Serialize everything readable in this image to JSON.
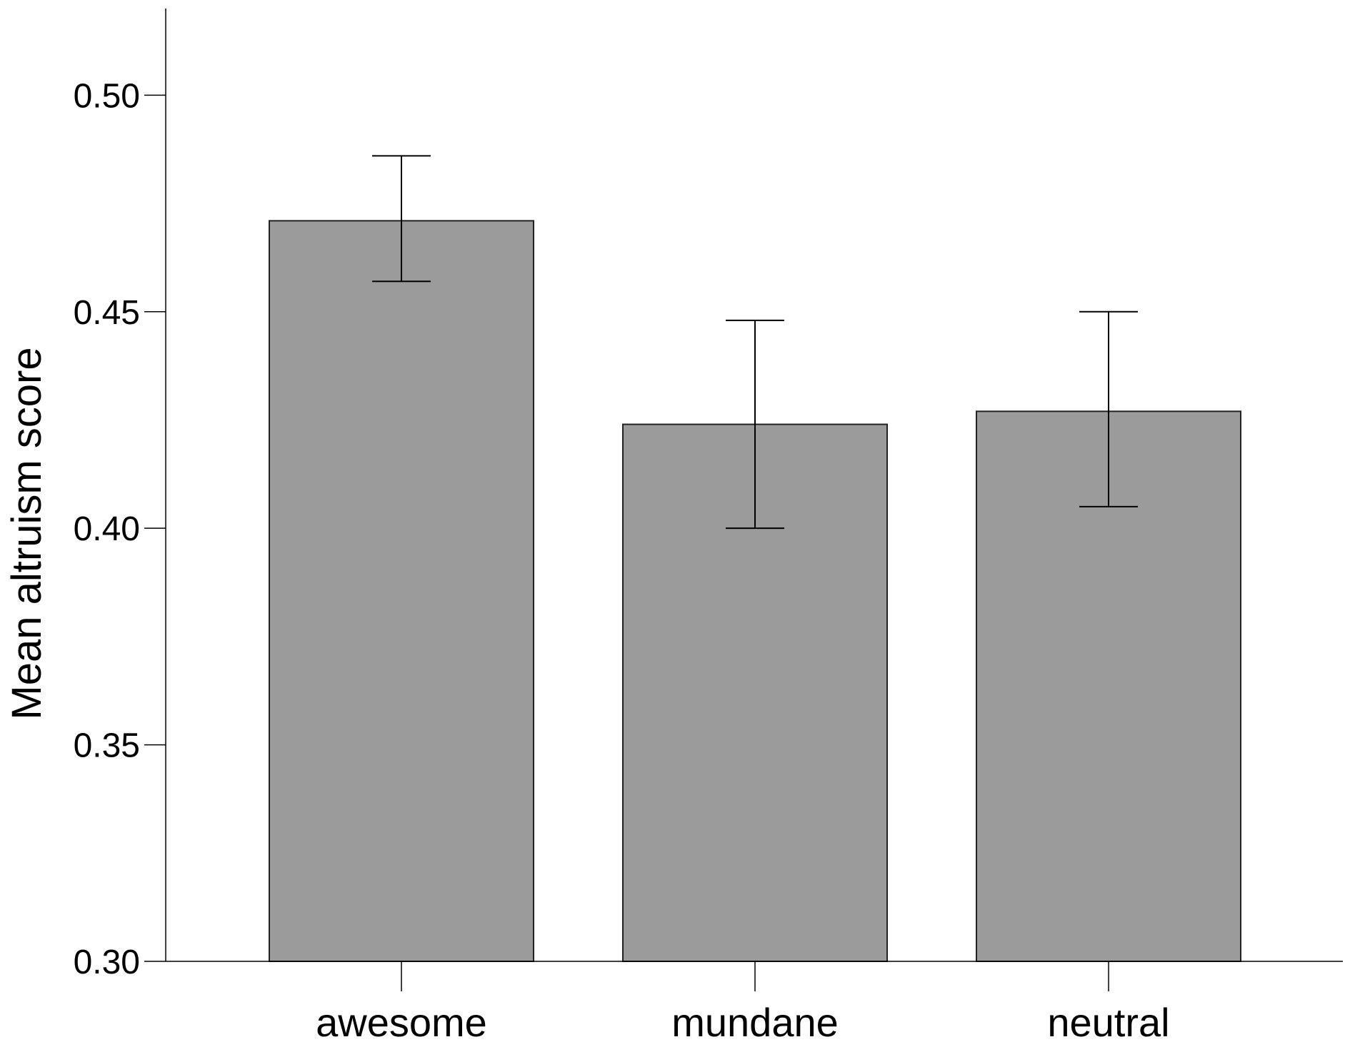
{
  "chart_data": {
    "type": "bar",
    "title": "",
    "xlabel": "",
    "ylabel": "Mean altruism score",
    "categories": [
      "awesome",
      "mundane",
      "neutral"
    ],
    "values": [
      0.471,
      0.424,
      0.427
    ],
    "error_low": [
      0.457,
      0.4,
      0.405
    ],
    "error_high": [
      0.486,
      0.448,
      0.45
    ],
    "ylim": [
      0.3,
      0.52
    ],
    "yticks": [
      0.3,
      0.35,
      0.4,
      0.45,
      0.5
    ],
    "ytick_labels": [
      "0.30",
      "0.35",
      "0.40",
      "0.45",
      "0.50"
    ],
    "grid": false,
    "legend": "none",
    "bar_color": "#9b9b9b",
    "bar_edge_color": "#222222"
  }
}
